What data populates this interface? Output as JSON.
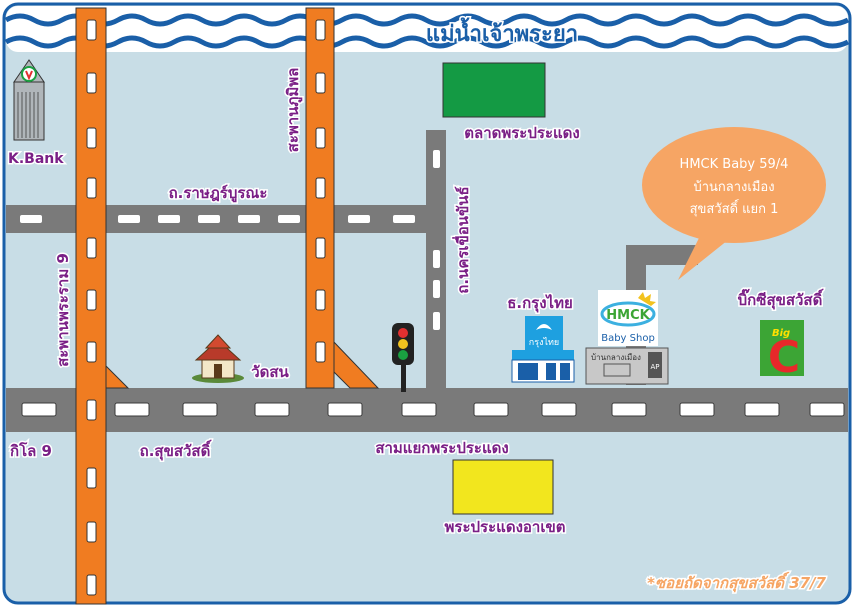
{
  "map": {
    "river_label": "แม่น้ำเจ้าพระยา",
    "roads": {
      "ratburana": "ถ.ราษฎร์บูรณะ",
      "nakhon_khuean_khan": "ถ.นครเขื่อนขันธ์",
      "sukhumvit": "ถ.สุขสวัสดิ์",
      "bhumibol_bridge": "สะพานภูมิพล",
      "rama9_bridge": "สะพานพระราม 9"
    },
    "places": {
      "kbank": "K.Bank",
      "market": "ตลาดพระประแดง",
      "ktb": "ธ.กรุงไทย",
      "ktb_sign": "กรุงไทย",
      "temple": "วัดสน",
      "bigc": "บิ๊กซีสุขสวัสดิ์",
      "bigc_logo_big": "Big",
      "bigc_logo_c": "C",
      "km9": "กิโล 9",
      "intersection": "สามแยกพระประแดง",
      "district_office": "พระประแดงอาเขต",
      "hmck_logo": "HMCK",
      "hmck_shop": "Baby Shop",
      "banklang_sign": "บ้านกลางเมือง",
      "banklang_ap": "AP"
    },
    "bubble": {
      "line1": "HMCK Baby  59/4",
      "line2": "บ้านกลางเมือง",
      "line3": "สุขสวัสดิ์ แยก 1"
    },
    "footnote": "*ซอยถัดจากสุขสวัสดิ์ 37/7",
    "colors": {
      "background": "#c8dde6",
      "road": "#7a7a7a",
      "bridge": "#f07c21",
      "river": "#1a5fa8",
      "market": "#149a44",
      "district": "#f2e61e",
      "bubble": "#f6a564",
      "label": "#7a1f86",
      "footnote": "#f6a564",
      "bigc_green": "#3ca535",
      "bigc_red": "#e8282a"
    }
  }
}
